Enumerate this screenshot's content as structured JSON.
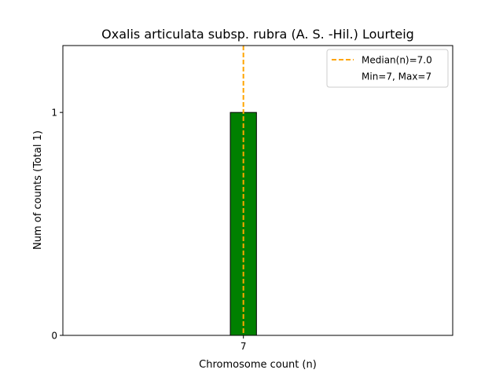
{
  "chart_data": {
    "type": "bar",
    "title": "Oxalis articulata subsp. rubra (A. S. -Hil.) Lourteig",
    "xlabel": "Chromosome count (n)",
    "ylabel": "Num of counts     (Total 1)",
    "categories": [
      "7"
    ],
    "x": [
      7
    ],
    "values": [
      1
    ],
    "xlim": [
      0.1,
      15.0
    ],
    "ylim": [
      0,
      1.3
    ],
    "xticks": [
      7
    ],
    "xtick_labels": [
      "7"
    ],
    "yticks": [
      0,
      1
    ],
    "ytick_labels": [
      "0",
      "1"
    ],
    "bar_width": 1.0,
    "bar_color": "#008000",
    "bar_edge_color": "#000000",
    "baseline_xmax": 14.3,
    "median": 7.0,
    "median_color": "#FFA500",
    "legend_placement": "top-right",
    "legend": [
      {
        "label": "Median(n)=7.0",
        "style": "dashed-line",
        "color": "#FFA500"
      },
      {
        "label": "Min=7, Max=7",
        "style": "none"
      }
    ],
    "grid": false
  }
}
